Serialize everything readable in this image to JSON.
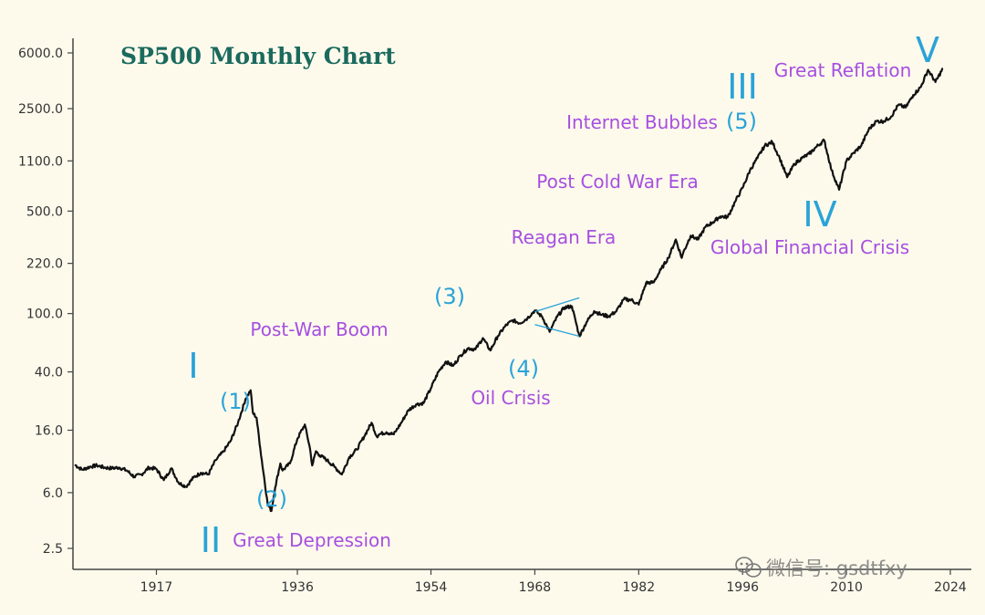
{
  "chart_data": {
    "type": "line",
    "title": "SP500 Monthly Chart",
    "xlabel": "",
    "ylabel": "",
    "y_scale": "log",
    "ylim": [
      2.2,
      6000
    ],
    "xlim": [
      1906,
      2024
    ],
    "grid": false,
    "x_ticks": [
      {
        "value": 1917,
        "label": "1917"
      },
      {
        "value": 1936,
        "label": "1936"
      },
      {
        "value": 1954,
        "label": "1954"
      },
      {
        "value": 1968,
        "label": "1968"
      },
      {
        "value": 1982,
        "label": "1982"
      },
      {
        "value": 1996,
        "label": "1996"
      },
      {
        "value": 2010,
        "label": "2010"
      },
      {
        "value": 2024,
        "label": "2024"
      }
    ],
    "y_ticks": [
      {
        "value": 6000,
        "label": "6000.0"
      },
      {
        "value": 2500,
        "label": "2500.0"
      },
      {
        "value": 1100,
        "label": "1100.0"
      },
      {
        "value": 500,
        "label": "500.0"
      },
      {
        "value": 220,
        "label": "220.0"
      },
      {
        "value": 100,
        "label": "100.0"
      },
      {
        "value": 40,
        "label": "40.0"
      },
      {
        "value": 16,
        "label": "16.0"
      },
      {
        "value": 6,
        "label": "6.0"
      },
      {
        "value": 2.5,
        "label": "2.5"
      }
    ],
    "series": [
      {
        "color": "#111111",
        "points": [
          [
            1906,
            9.3
          ],
          [
            1907,
            8.6
          ],
          [
            1908,
            9.0
          ],
          [
            1909,
            9.2
          ],
          [
            1910,
            8.9
          ],
          [
            1911,
            8.8
          ],
          [
            1912,
            8.9
          ],
          [
            1913,
            8.5
          ],
          [
            1914,
            7.7
          ],
          [
            1915,
            8.0
          ],
          [
            1916,
            8.9
          ],
          [
            1917,
            8.7
          ],
          [
            1918,
            7.3
          ],
          [
            1919,
            8.8
          ],
          [
            1920,
            7.0
          ],
          [
            1921,
            6.6
          ],
          [
            1922,
            7.6
          ],
          [
            1923,
            8.2
          ],
          [
            1924,
            8.0
          ],
          [
            1925,
            10.0
          ],
          [
            1926,
            11.4
          ],
          [
            1927,
            13.5
          ],
          [
            1928,
            18.0
          ],
          [
            1929,
            26.0
          ],
          [
            1929.7,
            30.0
          ],
          [
            1930,
            21.0
          ],
          [
            1930.5,
            19.5
          ],
          [
            1931,
            12.0
          ],
          [
            1932,
            5.0
          ],
          [
            1932.5,
            4.5
          ],
          [
            1933,
            6.5
          ],
          [
            1933.7,
            9.5
          ],
          [
            1934,
            8.5
          ],
          [
            1935,
            9.5
          ],
          [
            1936,
            14.0
          ],
          [
            1937,
            17.5
          ],
          [
            1937.7,
            12.0
          ],
          [
            1938,
            9.2
          ],
          [
            1938.5,
            11.5
          ],
          [
            1939,
            10.8
          ],
          [
            1940,
            10.0
          ],
          [
            1941,
            9.0
          ],
          [
            1942,
            8.0
          ],
          [
            1943,
            10.5
          ],
          [
            1944,
            11.8
          ],
          [
            1945,
            14.5
          ],
          [
            1946,
            18.0
          ],
          [
            1946.7,
            14.5
          ],
          [
            1947,
            15.0
          ],
          [
            1948,
            15.5
          ],
          [
            1949,
            15.0
          ],
          [
            1950,
            18.0
          ],
          [
            1951,
            22.0
          ],
          [
            1952,
            24.0
          ],
          [
            1953,
            24.5
          ],
          [
            1954,
            31.0
          ],
          [
            1955,
            40.0
          ],
          [
            1956,
            47.0
          ],
          [
            1957,
            44.0
          ],
          [
            1958,
            52.0
          ],
          [
            1959,
            58.0
          ],
          [
            1960,
            57.0
          ],
          [
            1961,
            68.0
          ],
          [
            1962,
            56.0
          ],
          [
            1963,
            70.0
          ],
          [
            1964,
            82.0
          ],
          [
            1965,
            90.0
          ],
          [
            1966,
            86.0
          ],
          [
            1967,
            93.0
          ],
          [
            1968,
            105.0
          ],
          [
            1969,
            95.0
          ],
          [
            1970,
            75.0
          ],
          [
            1971,
            95.0
          ],
          [
            1972,
            110.0
          ],
          [
            1973,
            112.0
          ],
          [
            1974,
            70.0
          ],
          [
            1975,
            88.0
          ],
          [
            1976,
            104.0
          ],
          [
            1977,
            98.0
          ],
          [
            1978,
            96.0
          ],
          [
            1979,
            104.0
          ],
          [
            1980,
            125.0
          ],
          [
            1981,
            124.0
          ],
          [
            1982,
            115.0
          ],
          [
            1983,
            162.0
          ],
          [
            1984,
            163.0
          ],
          [
            1985,
            200.0
          ],
          [
            1986,
            240.0
          ],
          [
            1987,
            320.0
          ],
          [
            1987.8,
            240.0
          ],
          [
            1988,
            260.0
          ],
          [
            1989,
            340.0
          ],
          [
            1990,
            320.0
          ],
          [
            1991,
            390.0
          ],
          [
            1992,
            420.0
          ],
          [
            1993,
            460.0
          ],
          [
            1994,
            455.0
          ],
          [
            1995,
            580.0
          ],
          [
            1996,
            720.0
          ],
          [
            1997,
            950.0
          ],
          [
            1998,
            1150.0
          ],
          [
            1999,
            1400.0
          ],
          [
            2000,
            1480.0
          ],
          [
            2001,
            1150.0
          ],
          [
            2002,
            850.0
          ],
          [
            2003,
            1050.0
          ],
          [
            2004,
            1150.0
          ],
          [
            2005,
            1230.0
          ],
          [
            2006,
            1380.0
          ],
          [
            2007,
            1520.0
          ],
          [
            2008,
            950.0
          ],
          [
            2009,
            700.0
          ],
          [
            2010,
            1100.0
          ],
          [
            2011,
            1250.0
          ],
          [
            2012,
            1400.0
          ],
          [
            2013,
            1800.0
          ],
          [
            2014,
            2050.0
          ],
          [
            2015,
            2050.0
          ],
          [
            2016,
            2200.0
          ],
          [
            2017,
            2650.0
          ],
          [
            2018,
            2550.0
          ],
          [
            2019,
            3100.0
          ],
          [
            2020,
            3500.0
          ],
          [
            2021,
            4600.0
          ],
          [
            2022,
            3800.0
          ],
          [
            2023,
            4700.0
          ]
        ]
      }
    ],
    "annotations": [
      {
        "id": "wave-I",
        "text": "I",
        "year": 1930,
        "color": "#2aa3d8",
        "size": "large"
      },
      {
        "id": "wave-II",
        "text": "II",
        "year": 1932,
        "color": "#2aa3d8",
        "size": "large"
      },
      {
        "id": "wave-III",
        "text": "III",
        "year": 2000,
        "color": "#2aa3d8",
        "size": "large"
      },
      {
        "id": "wave-IV",
        "text": "IV",
        "year": 2009,
        "color": "#2aa3d8",
        "size": "large"
      },
      {
        "id": "wave-V",
        "text": "V",
        "year": 2023,
        "color": "#2aa3d8",
        "size": "large"
      },
      {
        "id": "sub-1",
        "text": "(1)",
        "year": 1936,
        "color": "#2aa3d8",
        "size": "medium"
      },
      {
        "id": "sub-2",
        "text": "(2)",
        "year": 1938,
        "color": "#2aa3d8",
        "size": "medium"
      },
      {
        "id": "sub-3",
        "text": "(3)",
        "year": 1968,
        "color": "#2aa3d8",
        "size": "medium"
      },
      {
        "id": "sub-4",
        "text": "(4)",
        "year": 1974,
        "color": "#2aa3d8",
        "size": "medium"
      },
      {
        "id": "sub-5",
        "text": "(5)",
        "year": 2000,
        "color": "#2aa3d8",
        "size": "medium"
      },
      {
        "id": "label-great-depression",
        "text": "Great Depression",
        "color": "#a64fe0",
        "size": "small"
      },
      {
        "id": "label-post-war-boom",
        "text": "Post-War Boom",
        "color": "#a64fe0",
        "size": "small"
      },
      {
        "id": "label-oil-crisis",
        "text": "Oil Crisis",
        "color": "#a64fe0",
        "size": "small"
      },
      {
        "id": "label-reagan-era",
        "text": "Reagan Era",
        "color": "#a64fe0",
        "size": "small"
      },
      {
        "id": "label-post-cold-war-era",
        "text": "Post Cold War Era",
        "color": "#a64fe0",
        "size": "small"
      },
      {
        "id": "label-internet-bubbles",
        "text": "Internet Bubbles",
        "color": "#a64fe0",
        "size": "small"
      },
      {
        "id": "label-global-financial-crisis",
        "text": "Global Financial Crisis",
        "color": "#a64fe0",
        "size": "small"
      },
      {
        "id": "label-great-reflation",
        "text": "Great Reflation",
        "color": "#a64fe0",
        "size": "small"
      }
    ],
    "triangle_lines": [
      {
        "from": [
          1968,
          103
        ],
        "to": [
          1974,
          128
        ]
      },
      {
        "from": [
          1968,
          84
        ],
        "to": [
          1974,
          70
        ]
      }
    ]
  },
  "watermark": {
    "text": "微信号: gsdtfxy"
  },
  "colors": {
    "background": "#fdfaec",
    "axis": "#444444",
    "title": "#1a6a5d",
    "wave": "#2aa3d8",
    "era_label": "#a64fe0",
    "line": "#111111",
    "triangle": "#2aa3d8"
  }
}
